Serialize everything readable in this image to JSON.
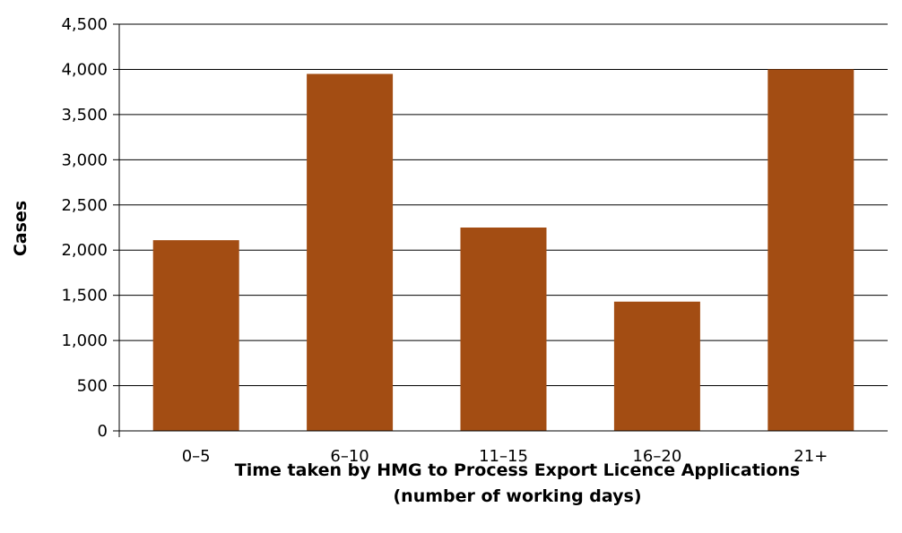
{
  "chart_data": {
    "type": "bar",
    "categories": [
      "0–5",
      "6–10",
      "11–15",
      "16–20",
      "21+"
    ],
    "values": [
      2110,
      3950,
      2250,
      1430,
      4000
    ],
    "ylim": [
      0,
      4500
    ],
    "yticks": [
      0,
      500,
      1000,
      1500,
      2000,
      2500,
      3000,
      3500,
      4000,
      4500
    ],
    "ytick_labels": [
      "0",
      "500",
      "1,000",
      "1,500",
      "2,000",
      "2,500",
      "3,000",
      "3,500",
      "4,000",
      "4,500"
    ],
    "ylabel": "Cases",
    "xlabel_line1": "Time taken by HMG to Process Export Licence Applications",
    "xlabel_line2": "(number of working days)",
    "grid": true,
    "bar_color": "#a34d13",
    "axis_color": "#000000"
  }
}
